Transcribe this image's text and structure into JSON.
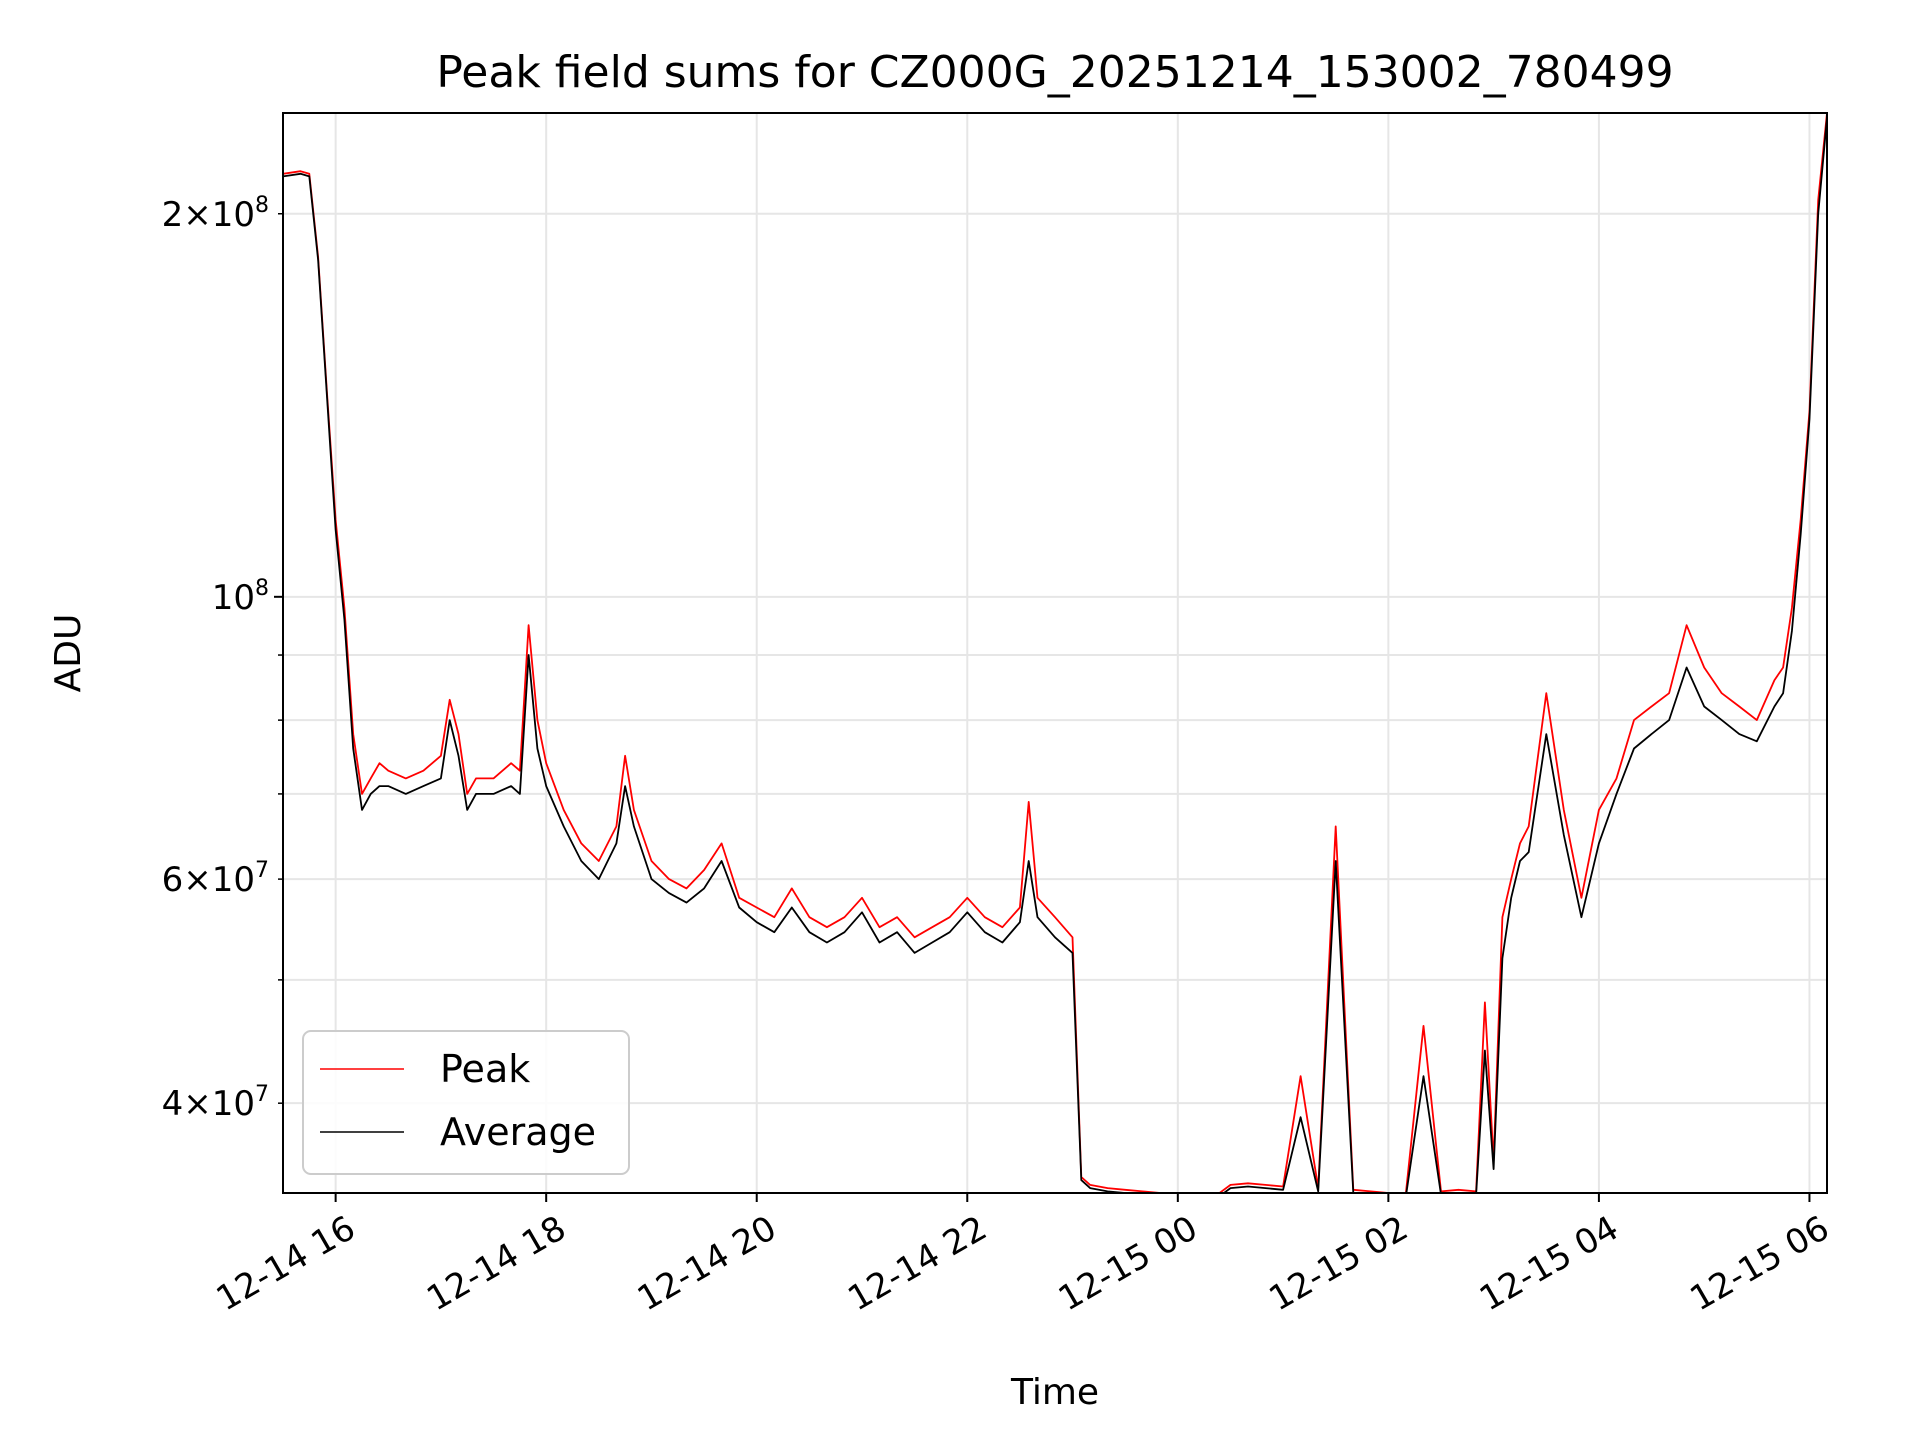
{
  "chart_data": {
    "type": "line",
    "title": "Peak field sums for CZ000G_20251214_153002_780499",
    "xlabel": "Time",
    "ylabel": "ADU",
    "yscale": "log",
    "grid": true,
    "legend_position": "lower-left",
    "xlim": [
      "2025-12-14 15:30",
      "2025-12-15 06:10"
    ],
    "ylim": [
      34000000,
      240000000
    ],
    "x_ticks": [
      {
        "value": "2025-12-14 16:00",
        "label": "12-14 16"
      },
      {
        "value": "2025-12-14 18:00",
        "label": "12-14 18"
      },
      {
        "value": "2025-12-14 20:00",
        "label": "12-14 20"
      },
      {
        "value": "2025-12-14 22:00",
        "label": "12-14 22"
      },
      {
        "value": "2025-12-15 00:00",
        "label": "12-15 00"
      },
      {
        "value": "2025-12-15 02:00",
        "label": "12-15 02"
      },
      {
        "value": "2025-12-15 04:00",
        "label": "12-15 04"
      },
      {
        "value": "2025-12-15 06:00",
        "label": "12-15 06"
      }
    ],
    "y_ticks_major": [
      {
        "value": 100000000,
        "base": "10",
        "exp": "8"
      }
    ],
    "y_ticks_minor": [
      {
        "value": 40000000,
        "mant": "4",
        "exp": "7"
      },
      {
        "value": 60000000,
        "mant": "6",
        "exp": "7"
      },
      {
        "value": 200000000,
        "mant": "2",
        "exp": "8"
      }
    ],
    "y_grid_minor_unlabeled": [
      30000000,
      50000000,
      70000000,
      80000000,
      90000000
    ],
    "series": [
      {
        "name": "Peak",
        "color": "#ff0000",
        "x": [
          "2025-12-14 15:30",
          "2025-12-14 15:40",
          "2025-12-14 15:45",
          "2025-12-14 15:50",
          "2025-12-14 15:55",
          "2025-12-14 16:00",
          "2025-12-14 16:05",
          "2025-12-14 16:10",
          "2025-12-14 16:15",
          "2025-12-14 16:20",
          "2025-12-14 16:25",
          "2025-12-14 16:30",
          "2025-12-14 16:40",
          "2025-12-14 16:50",
          "2025-12-14 17:00",
          "2025-12-14 17:05",
          "2025-12-14 17:10",
          "2025-12-14 17:15",
          "2025-12-14 17:20",
          "2025-12-14 17:30",
          "2025-12-14 17:40",
          "2025-12-14 17:45",
          "2025-12-14 17:50",
          "2025-12-14 17:55",
          "2025-12-14 18:00",
          "2025-12-14 18:10",
          "2025-12-14 18:20",
          "2025-12-14 18:30",
          "2025-12-14 18:40",
          "2025-12-14 18:45",
          "2025-12-14 18:50",
          "2025-12-14 19:00",
          "2025-12-14 19:10",
          "2025-12-14 19:20",
          "2025-12-14 19:30",
          "2025-12-14 19:40",
          "2025-12-14 19:50",
          "2025-12-14 20:00",
          "2025-12-14 20:10",
          "2025-12-14 20:20",
          "2025-12-14 20:30",
          "2025-12-14 20:40",
          "2025-12-14 20:50",
          "2025-12-14 21:00",
          "2025-12-14 21:10",
          "2025-12-14 21:20",
          "2025-12-14 21:30",
          "2025-12-14 21:40",
          "2025-12-14 21:50",
          "2025-12-14 22:00",
          "2025-12-14 22:10",
          "2025-12-14 22:20",
          "2025-12-14 22:30",
          "2025-12-14 22:35",
          "2025-12-14 22:40",
          "2025-12-14 22:50",
          "2025-12-14 23:00",
          "2025-12-14 23:05",
          "2025-12-14 23:10",
          "2025-12-14 23:20",
          "2025-12-14 23:30",
          "2025-12-14 23:40",
          "2025-12-14 23:50",
          "2025-12-15 00:00",
          "2025-12-15 00:10",
          "2025-12-15 00:20",
          "2025-12-15 00:30",
          "2025-12-15 00:40",
          "2025-12-15 00:50",
          "2025-12-15 01:00",
          "2025-12-15 01:10",
          "2025-12-15 01:20",
          "2025-12-15 01:30",
          "2025-12-15 01:40",
          "2025-12-15 01:50",
          "2025-12-15 02:00",
          "2025-12-15 02:10",
          "2025-12-15 02:20",
          "2025-12-15 02:30",
          "2025-12-15 02:40",
          "2025-12-15 02:50",
          "2025-12-15 02:55",
          "2025-12-15 03:00",
          "2025-12-15 03:05",
          "2025-12-15 03:10",
          "2025-12-15 03:15",
          "2025-12-15 03:20",
          "2025-12-15 03:30",
          "2025-12-15 03:40",
          "2025-12-15 03:50",
          "2025-12-15 04:00",
          "2025-12-15 04:10",
          "2025-12-15 04:20",
          "2025-12-15 04:30",
          "2025-12-15 04:40",
          "2025-12-15 04:50",
          "2025-12-15 05:00",
          "2025-12-15 05:10",
          "2025-12-15 05:20",
          "2025-12-15 05:30",
          "2025-12-15 05:40",
          "2025-12-15 05:45",
          "2025-12-15 05:50",
          "2025-12-15 05:55",
          "2025-12-15 06:00",
          "2025-12-15 06:05",
          "2025-12-15 06:10"
        ],
        "y": [
          215000000,
          216000000,
          215000000,
          185000000,
          145000000,
          115000000,
          98000000,
          78000000,
          70000000,
          72000000,
          74000000,
          73000000,
          72000000,
          73000000,
          75000000,
          83000000,
          78000000,
          70000000,
          72000000,
          72000000,
          74000000,
          73000000,
          95000000,
          80000000,
          74000000,
          68000000,
          64000000,
          62000000,
          66000000,
          75000000,
          68000000,
          62000000,
          60000000,
          59000000,
          61000000,
          64000000,
          58000000,
          57000000,
          56000000,
          59000000,
          56000000,
          55000000,
          56000000,
          58000000,
          55000000,
          56000000,
          54000000,
          55000000,
          56000000,
          58000000,
          56000000,
          55000000,
          57000000,
          69000000,
          58000000,
          56000000,
          54000000,
          35000000,
          34500000,
          34300000,
          34200000,
          34100000,
          34000000,
          34000000,
          33800000,
          33700000,
          34500000,
          34600000,
          34500000,
          34400000,
          42000000,
          34300000,
          66000000,
          34200000,
          34100000,
          34000000,
          34000000,
          46000000,
          34100000,
          34200000,
          34100000,
          48000000,
          36000000,
          56000000,
          60000000,
          64000000,
          66000000,
          84000000,
          68000000,
          58000000,
          68000000,
          72000000,
          80000000,
          82000000,
          84000000,
          95000000,
          88000000,
          84000000,
          82000000,
          80000000,
          86000000,
          88000000,
          98000000,
          115000000,
          140000000,
          205000000,
          240000000
        ]
      },
      {
        "name": "Average",
        "color": "#000000",
        "x": [
          "2025-12-14 15:30",
          "2025-12-14 15:40",
          "2025-12-14 15:45",
          "2025-12-14 15:50",
          "2025-12-14 15:55",
          "2025-12-14 16:00",
          "2025-12-14 16:05",
          "2025-12-14 16:10",
          "2025-12-14 16:15",
          "2025-12-14 16:20",
          "2025-12-14 16:25",
          "2025-12-14 16:30",
          "2025-12-14 16:40",
          "2025-12-14 16:50",
          "2025-12-14 17:00",
          "2025-12-14 17:05",
          "2025-12-14 17:10",
          "2025-12-14 17:15",
          "2025-12-14 17:20",
          "2025-12-14 17:30",
          "2025-12-14 17:40",
          "2025-12-14 17:45",
          "2025-12-14 17:50",
          "2025-12-14 17:55",
          "2025-12-14 18:00",
          "2025-12-14 18:10",
          "2025-12-14 18:20",
          "2025-12-14 18:30",
          "2025-12-14 18:40",
          "2025-12-14 18:45",
          "2025-12-14 18:50",
          "2025-12-14 19:00",
          "2025-12-14 19:10",
          "2025-12-14 19:20",
          "2025-12-14 19:30",
          "2025-12-14 19:40",
          "2025-12-14 19:50",
          "2025-12-14 20:00",
          "2025-12-14 20:10",
          "2025-12-14 20:20",
          "2025-12-14 20:30",
          "2025-12-14 20:40",
          "2025-12-14 20:50",
          "2025-12-14 21:00",
          "2025-12-14 21:10",
          "2025-12-14 21:20",
          "2025-12-14 21:30",
          "2025-12-14 21:40",
          "2025-12-14 21:50",
          "2025-12-14 22:00",
          "2025-12-14 22:10",
          "2025-12-14 22:20",
          "2025-12-14 22:30",
          "2025-12-14 22:35",
          "2025-12-14 22:40",
          "2025-12-14 22:50",
          "2025-12-14 23:00",
          "2025-12-14 23:05",
          "2025-12-14 23:10",
          "2025-12-14 23:20",
          "2025-12-14 23:30",
          "2025-12-14 23:40",
          "2025-12-14 23:50",
          "2025-12-15 00:00",
          "2025-12-15 00:10",
          "2025-12-15 00:20",
          "2025-12-15 00:30",
          "2025-12-15 00:40",
          "2025-12-15 00:50",
          "2025-12-15 01:00",
          "2025-12-15 01:10",
          "2025-12-15 01:20",
          "2025-12-15 01:30",
          "2025-12-15 01:40",
          "2025-12-15 01:50",
          "2025-12-15 02:00",
          "2025-12-15 02:10",
          "2025-12-15 02:20",
          "2025-12-15 02:30",
          "2025-12-15 02:40",
          "2025-12-15 02:50",
          "2025-12-15 02:55",
          "2025-12-15 03:00",
          "2025-12-15 03:05",
          "2025-12-15 03:10",
          "2025-12-15 03:15",
          "2025-12-15 03:20",
          "2025-12-15 03:30",
          "2025-12-15 03:40",
          "2025-12-15 03:50",
          "2025-12-15 04:00",
          "2025-12-15 04:10",
          "2025-12-15 04:20",
          "2025-12-15 04:30",
          "2025-12-15 04:40",
          "2025-12-15 04:50",
          "2025-12-15 05:00",
          "2025-12-15 05:10",
          "2025-12-15 05:20",
          "2025-12-15 05:30",
          "2025-12-15 05:40",
          "2025-12-15 05:45",
          "2025-12-15 05:50",
          "2025-12-15 05:55",
          "2025-12-15 06:00",
          "2025-12-15 06:05",
          "2025-12-15 06:10"
        ],
        "y": [
          214000000,
          215000000,
          214000000,
          184000000,
          144000000,
          113000000,
          96000000,
          76000000,
          68000000,
          70000000,
          71000000,
          71000000,
          70000000,
          71000000,
          72000000,
          80000000,
          75000000,
          68000000,
          70000000,
          70000000,
          71000000,
          70000000,
          90000000,
          76000000,
          71000000,
          66000000,
          62000000,
          60000000,
          64000000,
          71000000,
          66000000,
          60000000,
          58500000,
          57500000,
          59000000,
          62000000,
          57000000,
          55500000,
          54500000,
          57000000,
          54500000,
          53500000,
          54500000,
          56500000,
          53500000,
          54500000,
          52500000,
          53500000,
          54500000,
          56500000,
          54500000,
          53500000,
          55500000,
          62000000,
          56000000,
          54000000,
          52500000,
          34800000,
          34300000,
          34100000,
          34000000,
          33900000,
          33800000,
          33800000,
          33600000,
          33500000,
          34300000,
          34400000,
          34300000,
          34200000,
          39000000,
          34100000,
          62000000,
          34000000,
          33900000,
          33800000,
          33800000,
          42000000,
          33900000,
          34000000,
          33900000,
          44000000,
          35500000,
          52000000,
          58000000,
          62000000,
          63000000,
          78000000,
          65000000,
          56000000,
          64000000,
          70000000,
          76000000,
          78000000,
          80000000,
          88000000,
          82000000,
          80000000,
          78000000,
          77000000,
          82000000,
          84000000,
          94000000,
          112000000,
          138000000,
          200000000,
          238000000
        ]
      }
    ]
  }
}
